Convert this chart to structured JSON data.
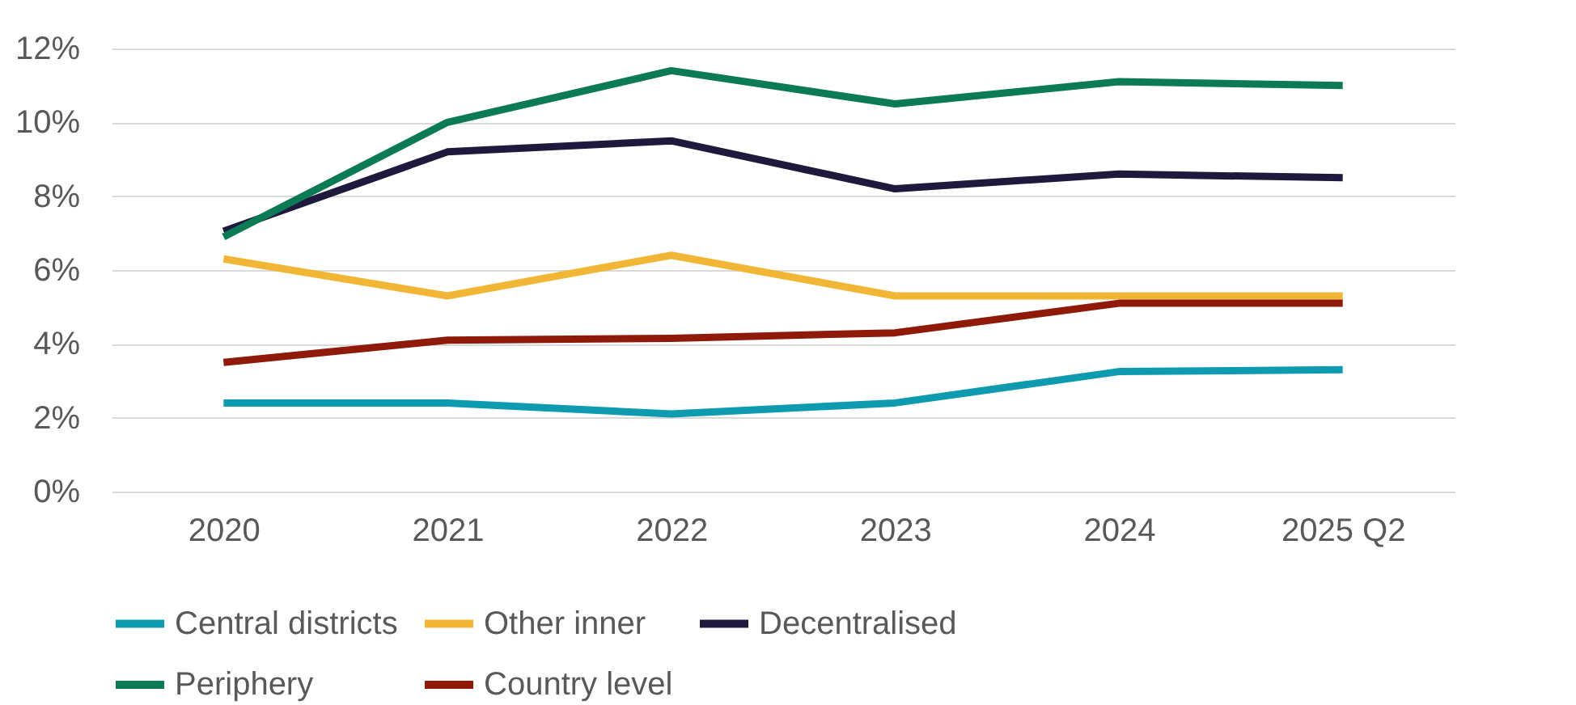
{
  "chart_data": {
    "type": "line",
    "categories": [
      "2020",
      "2021",
      "2022",
      "2023",
      "2024",
      "2025 Q2"
    ],
    "series": [
      {
        "name": "Central districts",
        "color": "#0e9bb0",
        "values": [
          2.4,
          2.4,
          2.1,
          2.4,
          3.25,
          3.3
        ]
      },
      {
        "name": "Other inner",
        "color": "#f2b636",
        "values": [
          6.3,
          5.3,
          6.4,
          5.3,
          5.3,
          5.3
        ]
      },
      {
        "name": "Decentralised",
        "color": "#1f1a3d",
        "values": [
          7.05,
          9.2,
          9.5,
          8.2,
          8.6,
          8.5
        ]
      },
      {
        "name": "Periphery",
        "color": "#0b7a55",
        "values": [
          6.9,
          10.0,
          11.4,
          10.5,
          11.1,
          11.0
        ]
      },
      {
        "name": "Country level",
        "color": "#8f1a0a",
        "values": [
          3.5,
          4.1,
          4.15,
          4.3,
          5.1,
          5.1
        ]
      }
    ],
    "ylim": [
      0,
      12
    ],
    "yticks": [
      {
        "value": 0,
        "label": "0%"
      },
      {
        "value": 2,
        "label": "2%"
      },
      {
        "value": 4,
        "label": "4%"
      },
      {
        "value": 6,
        "label": "6%"
      },
      {
        "value": 8,
        "label": "8%"
      },
      {
        "value": 10,
        "label": "10%"
      },
      {
        "value": 12,
        "label": "12%"
      }
    ],
    "grid": "y",
    "legend": "bottom",
    "marker": "none",
    "line_style": "solid"
  }
}
